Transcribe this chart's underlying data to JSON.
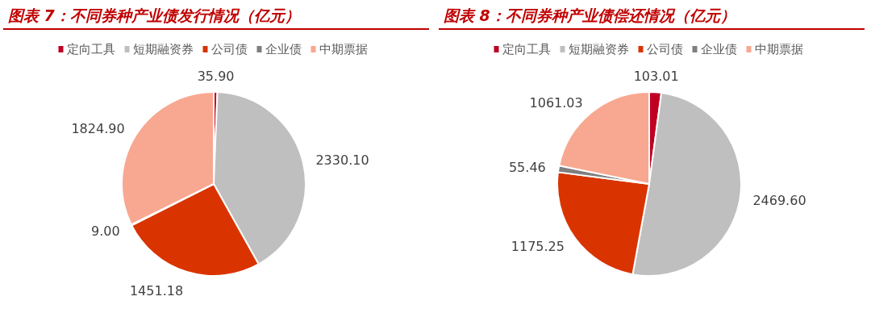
{
  "chart_data": [
    {
      "type": "pie",
      "title": "图表 7：不同券种产业债发行情况（亿元）",
      "legend": "top",
      "categories": [
        "定向工具",
        "短期融资券",
        "公司债",
        "企业债",
        "中期票据"
      ],
      "values": [
        35.9,
        2330.1,
        1451.18,
        9.0,
        1824.9
      ],
      "value_labels": [
        "35.90",
        "2330.10",
        "1451.18",
        "9.00",
        "1824.90"
      ],
      "colors": [
        "#c00023",
        "#bfbfbf",
        "#d93400",
        "#7f7f7f",
        "#f8a890"
      ]
    },
    {
      "type": "pie",
      "title": "图表 8：不同券种产业债偿还情况（亿元）",
      "legend": "top",
      "categories": [
        "定向工具",
        "短期融资券",
        "公司债",
        "企业债",
        "中期票据"
      ],
      "values": [
        103.01,
        2469.6,
        1175.25,
        55.46,
        1061.03
      ],
      "value_labels": [
        "103.01",
        "2469.60",
        "1175.25",
        "55.46",
        "1061.03"
      ],
      "colors": [
        "#c00023",
        "#bfbfbf",
        "#d93400",
        "#7f7f7f",
        "#f8a890"
      ]
    }
  ]
}
